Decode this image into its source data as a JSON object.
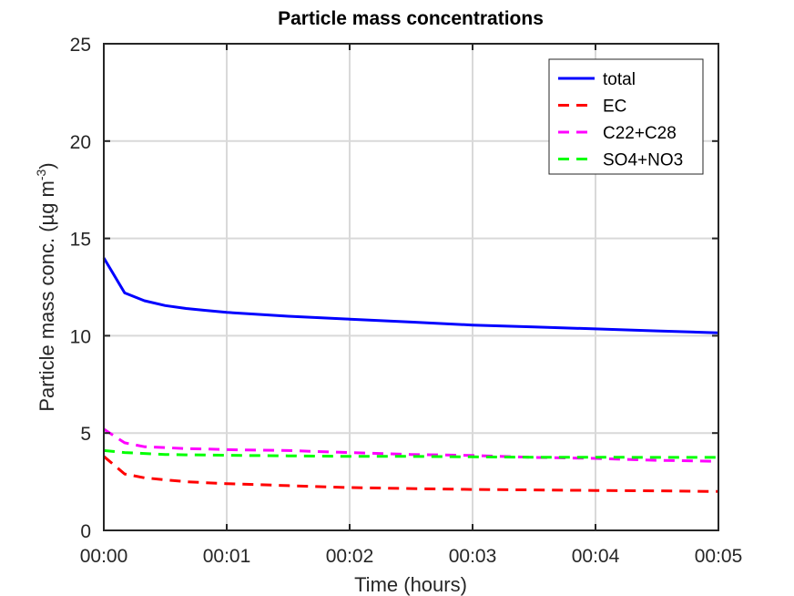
{
  "chart_data": {
    "type": "line",
    "title": "Particle mass concentrations",
    "xlabel": "Time (hours)",
    "ylabel_main": "Particle mass conc. (µg m",
    "ylabel_sup": "-3",
    "ylabel_close": ")",
    "xlim": [
      0,
      5
    ],
    "ylim": [
      0,
      25
    ],
    "xticks": [
      0,
      1,
      2,
      3,
      4,
      5
    ],
    "xtick_labels": [
      "00:00",
      "00:01",
      "00:02",
      "00:03",
      "00:04",
      "00:05"
    ],
    "yticks": [
      0,
      5,
      10,
      15,
      20,
      25
    ],
    "ytick_labels": [
      "0",
      "5",
      "10",
      "15",
      "20",
      "25"
    ],
    "grid": true,
    "legend_position": "top-right",
    "series": [
      {
        "name": "total",
        "color": "#0000ff",
        "style": "solid",
        "x": [
          0,
          0.17,
          0.33,
          0.5,
          0.67,
          0.83,
          1,
          1.5,
          2,
          2.5,
          3,
          3.5,
          4,
          4.5,
          5
        ],
        "y": [
          14.0,
          12.2,
          11.8,
          11.55,
          11.4,
          11.3,
          11.2,
          11.0,
          10.85,
          10.7,
          10.55,
          10.45,
          10.35,
          10.25,
          10.15
        ]
      },
      {
        "name": "EC",
        "color": "#ff0000",
        "style": "dashed",
        "x": [
          0,
          0.17,
          0.33,
          0.5,
          0.67,
          0.83,
          1,
          1.5,
          2,
          2.5,
          3,
          3.5,
          4,
          4.5,
          5
        ],
        "y": [
          3.8,
          2.9,
          2.7,
          2.6,
          2.5,
          2.45,
          2.4,
          2.3,
          2.2,
          2.15,
          2.1,
          2.08,
          2.05,
          2.03,
          2.0
        ]
      },
      {
        "name": "C22+C28",
        "color": "#ff00ff",
        "style": "dashed",
        "x": [
          0,
          0.17,
          0.33,
          0.5,
          0.67,
          0.83,
          1,
          1.5,
          2,
          2.5,
          3,
          3.5,
          4,
          4.5,
          5
        ],
        "y": [
          5.2,
          4.5,
          4.3,
          4.25,
          4.2,
          4.18,
          4.15,
          4.1,
          4.0,
          3.9,
          3.85,
          3.75,
          3.7,
          3.6,
          3.55
        ]
      },
      {
        "name": "SO4+NO3",
        "color": "#00ff00",
        "style": "dashed",
        "x": [
          0,
          0.17,
          0.33,
          0.5,
          0.67,
          0.83,
          1,
          1.5,
          2,
          2.5,
          3,
          3.5,
          4,
          4.5,
          5
        ],
        "y": [
          4.1,
          4.0,
          3.95,
          3.9,
          3.88,
          3.87,
          3.86,
          3.83,
          3.8,
          3.8,
          3.78,
          3.76,
          3.76,
          3.75,
          3.75
        ]
      }
    ]
  }
}
